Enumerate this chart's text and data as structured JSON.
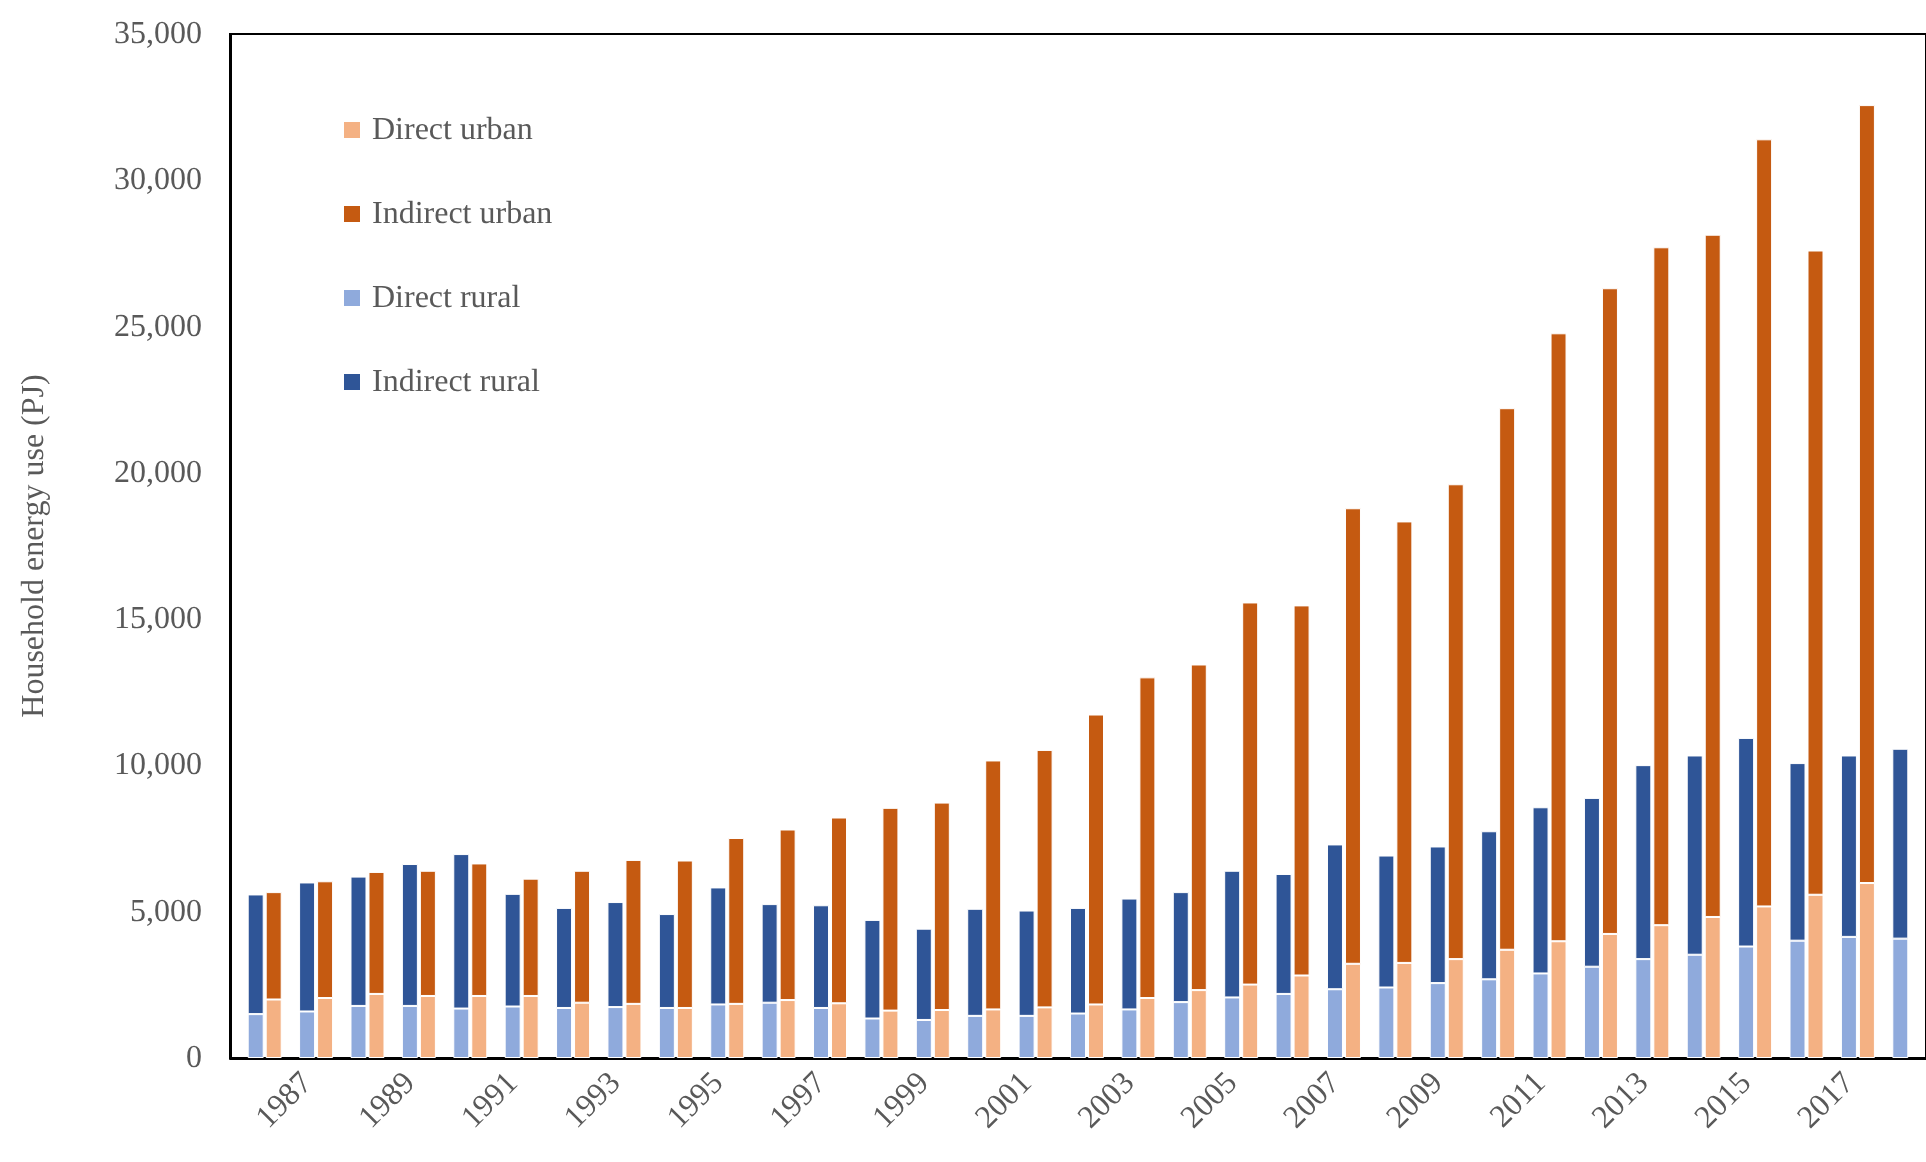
{
  "chart_data": [
    {
      "type": "bar",
      "stacked": true,
      "ylabel": "Household energy use (PJ)",
      "categories": [
        null,
        "1987",
        null,
        "1989",
        null,
        "1991",
        null,
        "1993",
        null,
        "1995",
        null,
        "1997",
        null,
        "1999",
        null,
        "2001",
        null,
        "2003",
        null,
        "2005",
        null,
        "2007",
        null,
        "2009",
        null,
        "2011",
        null,
        "2013",
        null,
        "2015",
        null,
        "2017",
        null
      ],
      "series": [
        {
          "name": "Direct rural",
          "color": "#8faadc",
          "values": [
            1500,
            1590,
            1780,
            1780,
            1690,
            1760,
            1710,
            1740,
            1710,
            1830,
            1890,
            1710,
            1350,
            1300,
            1440,
            1440,
            1520,
            1660,
            1910,
            2070,
            2190,
            2350,
            2410,
            2560,
            2690,
            2890,
            3120,
            3380,
            3530,
            3810,
            4010,
            4140,
            4080
          ]
        },
        {
          "name": "Indirect rural",
          "color": "#2f5597",
          "values": [
            4090,
            4410,
            4420,
            4850,
            5280,
            3850,
            3420,
            3590,
            3210,
            4000,
            3370,
            3510,
            3370,
            3120,
            3660,
            3600,
            3610,
            3790,
            3760,
            4330,
            4100,
            4950,
            4510,
            4670,
            5060,
            5680,
            5770,
            6630,
            6810,
            7130,
            6070,
            6200,
            6490
          ]
        }
      ],
      "ylim": [
        0,
        35000
      ],
      "yticks": [
        0,
        {
          "value": 5000,
          "label": "5,000"
        },
        {
          "value": 10000,
          "label": "10,000"
        },
        {
          "value": 15000,
          "label": "15,000"
        },
        {
          "value": 20000,
          "label": "20,000"
        },
        {
          "value": 25000,
          "label": "25,000"
        },
        {
          "value": 30000,
          "label": "30,000"
        },
        {
          "value": 35000,
          "label": "35,000"
        }
      ],
      "grid": false,
      "legend": "top left"
    },
    {
      "type": "bar",
      "stacked": true,
      "tick_labels": false,
      "categories": [
        null,
        "1987",
        null,
        "1989",
        null,
        "1991",
        null,
        "1993",
        null,
        "1995",
        null,
        "1997",
        null,
        "1999",
        null,
        "2001",
        null,
        "2003",
        null,
        "2005",
        null,
        "2007",
        null,
        "2009",
        null,
        "2011",
        null,
        "2013",
        null,
        "2015",
        null,
        "2017",
        null
      ],
      "series": [
        {
          "name": "Direct urban",
          "color": "#f4b183",
          "values": [
            2000,
            2050,
            2190,
            2120,
            2120,
            2120,
            1890,
            1850,
            1710,
            1850,
            1980,
            1870,
            1620,
            1640,
            1660,
            1730,
            1830,
            2050,
            2320,
            2510,
            2820,
            3220,
            3250,
            3380,
            3700,
            3990,
            4240,
            4540,
            4820,
            5180,
            5580,
            5980,
            null
          ]
        },
        {
          "name": "Indirect urban",
          "color": "#c55a11",
          "values": [
            3670,
            3990,
            4170,
            4280,
            4530,
            4010,
            4510,
            4920,
            5040,
            5670,
            5830,
            6350,
            6930,
            7090,
            8510,
            8800,
            9910,
            10960,
            11130,
            13060,
            12650,
            15570,
            15090,
            16230,
            18510,
            20780,
            22070,
            23170,
            23320,
            26220,
            22020,
            26590,
            null
          ]
        }
      ],
      "ylim": [
        0,
        35000
      ],
      "grid": false,
      "legend": "top left"
    }
  ]
}
